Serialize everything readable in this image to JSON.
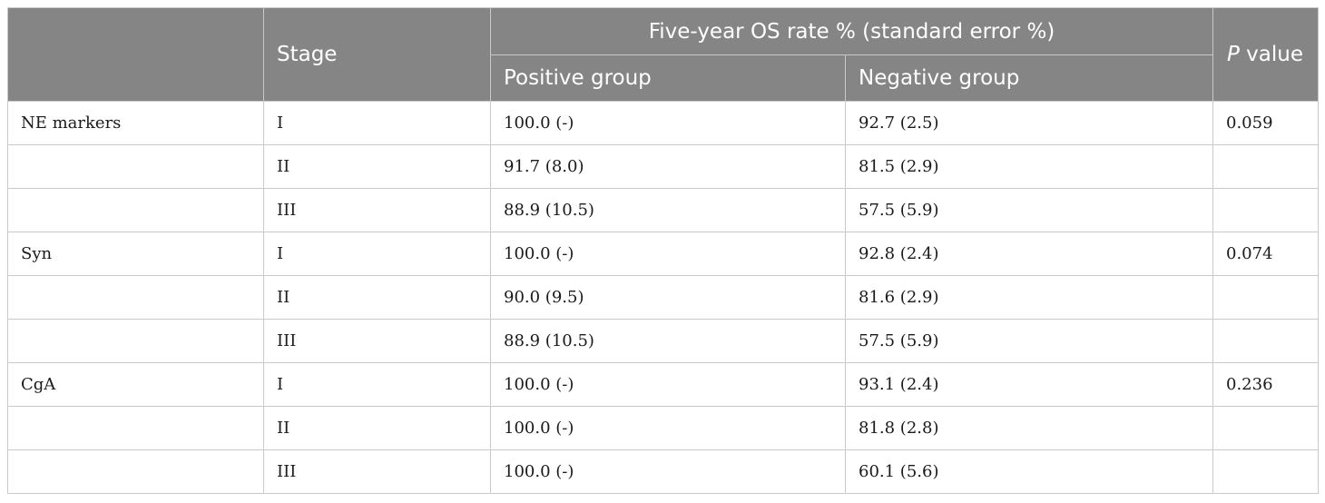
{
  "table": {
    "headers": {
      "marker": "",
      "stage": "Stage",
      "five_year": "Five-year OS rate % (standard error %)",
      "positive": "Positive group",
      "negative": "Negative group",
      "p_symbol": "P",
      "p_word": " value"
    },
    "rows": [
      {
        "marker": "NE markers",
        "stage": "I",
        "positive": "100.0 (-)",
        "negative": "92.7 (2.5)",
        "p": "0.059"
      },
      {
        "marker": "",
        "stage": "II",
        "positive": "91.7 (8.0)",
        "negative": "81.5 (2.9)",
        "p": ""
      },
      {
        "marker": "",
        "stage": "III",
        "positive": "88.9 (10.5)",
        "negative": "57.5 (5.9)",
        "p": ""
      },
      {
        "marker": "Syn",
        "stage": "I",
        "positive": "100.0 (-)",
        "negative": "92.8 (2.4)",
        "p": "0.074"
      },
      {
        "marker": "",
        "stage": "II",
        "positive": "90.0 (9.5)",
        "negative": "81.6 (2.9)",
        "p": ""
      },
      {
        "marker": "",
        "stage": "III",
        "positive": "88.9 (10.5)",
        "negative": "57.5 (5.9)",
        "p": ""
      },
      {
        "marker": "CgA",
        "stage": "I",
        "positive": "100.0 (-)",
        "negative": "93.1 (2.4)",
        "p": "0.236"
      },
      {
        "marker": "",
        "stage": "II",
        "positive": "100.0 (-)",
        "negative": "81.8 (2.8)",
        "p": ""
      },
      {
        "marker": "",
        "stage": "III",
        "positive": "100.0 (-)",
        "negative": "60.1 (5.6)",
        "p": ""
      }
    ]
  }
}
